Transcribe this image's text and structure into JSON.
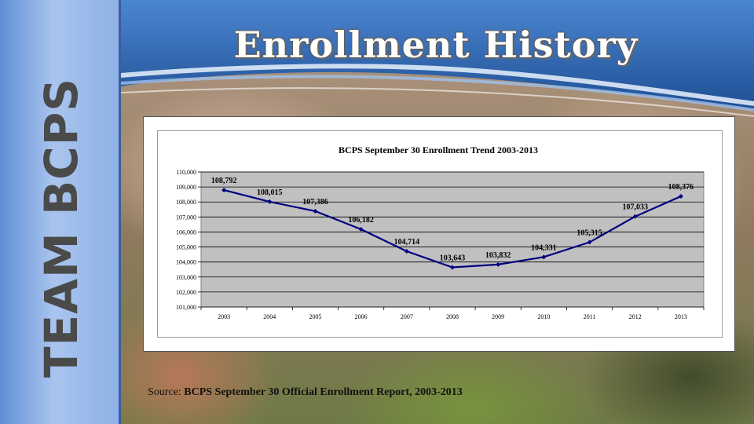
{
  "slide": {
    "title": "Enrollment History",
    "sidebar_text": "TEAM BCPS",
    "source_prefix": "Source:",
    "source_text": "BCPS September 30 Official Enrollment Report, 2003-2013"
  },
  "colors": {
    "header_blue": "#2f67b3",
    "sidebar_blue": "#8fb1e6",
    "plot_bg": "#c0c0c0",
    "line": "#000080"
  },
  "chart_data": {
    "type": "line",
    "title": "BCPS September 30 Enrollment Trend 2003-2013",
    "xlabel": "",
    "ylabel": "",
    "categories": [
      "2003",
      "2004",
      "2005",
      "2006",
      "2007",
      "2008",
      "2009",
      "2010",
      "2011",
      "2012",
      "2013"
    ],
    "values": [
      108792,
      108015,
      107386,
      106182,
      104714,
      103643,
      103832,
      104331,
      105315,
      107033,
      108376
    ],
    "data_labels": [
      "108,792",
      "108,015",
      "107,386",
      "106,182",
      "104,714",
      "103,643",
      "103,832",
      "104,331",
      "105,315",
      "107,033",
      "108,376"
    ],
    "ylim": [
      101000,
      110000
    ],
    "yticks": [
      101000,
      102000,
      103000,
      104000,
      105000,
      106000,
      107000,
      108000,
      109000,
      110000
    ],
    "ytick_labels": [
      "101,000",
      "102,000",
      "103,000",
      "104,000",
      "105,000",
      "106,000",
      "107,000",
      "108,000",
      "109,000",
      "110,000"
    ],
    "grid": true,
    "legend": "none"
  }
}
